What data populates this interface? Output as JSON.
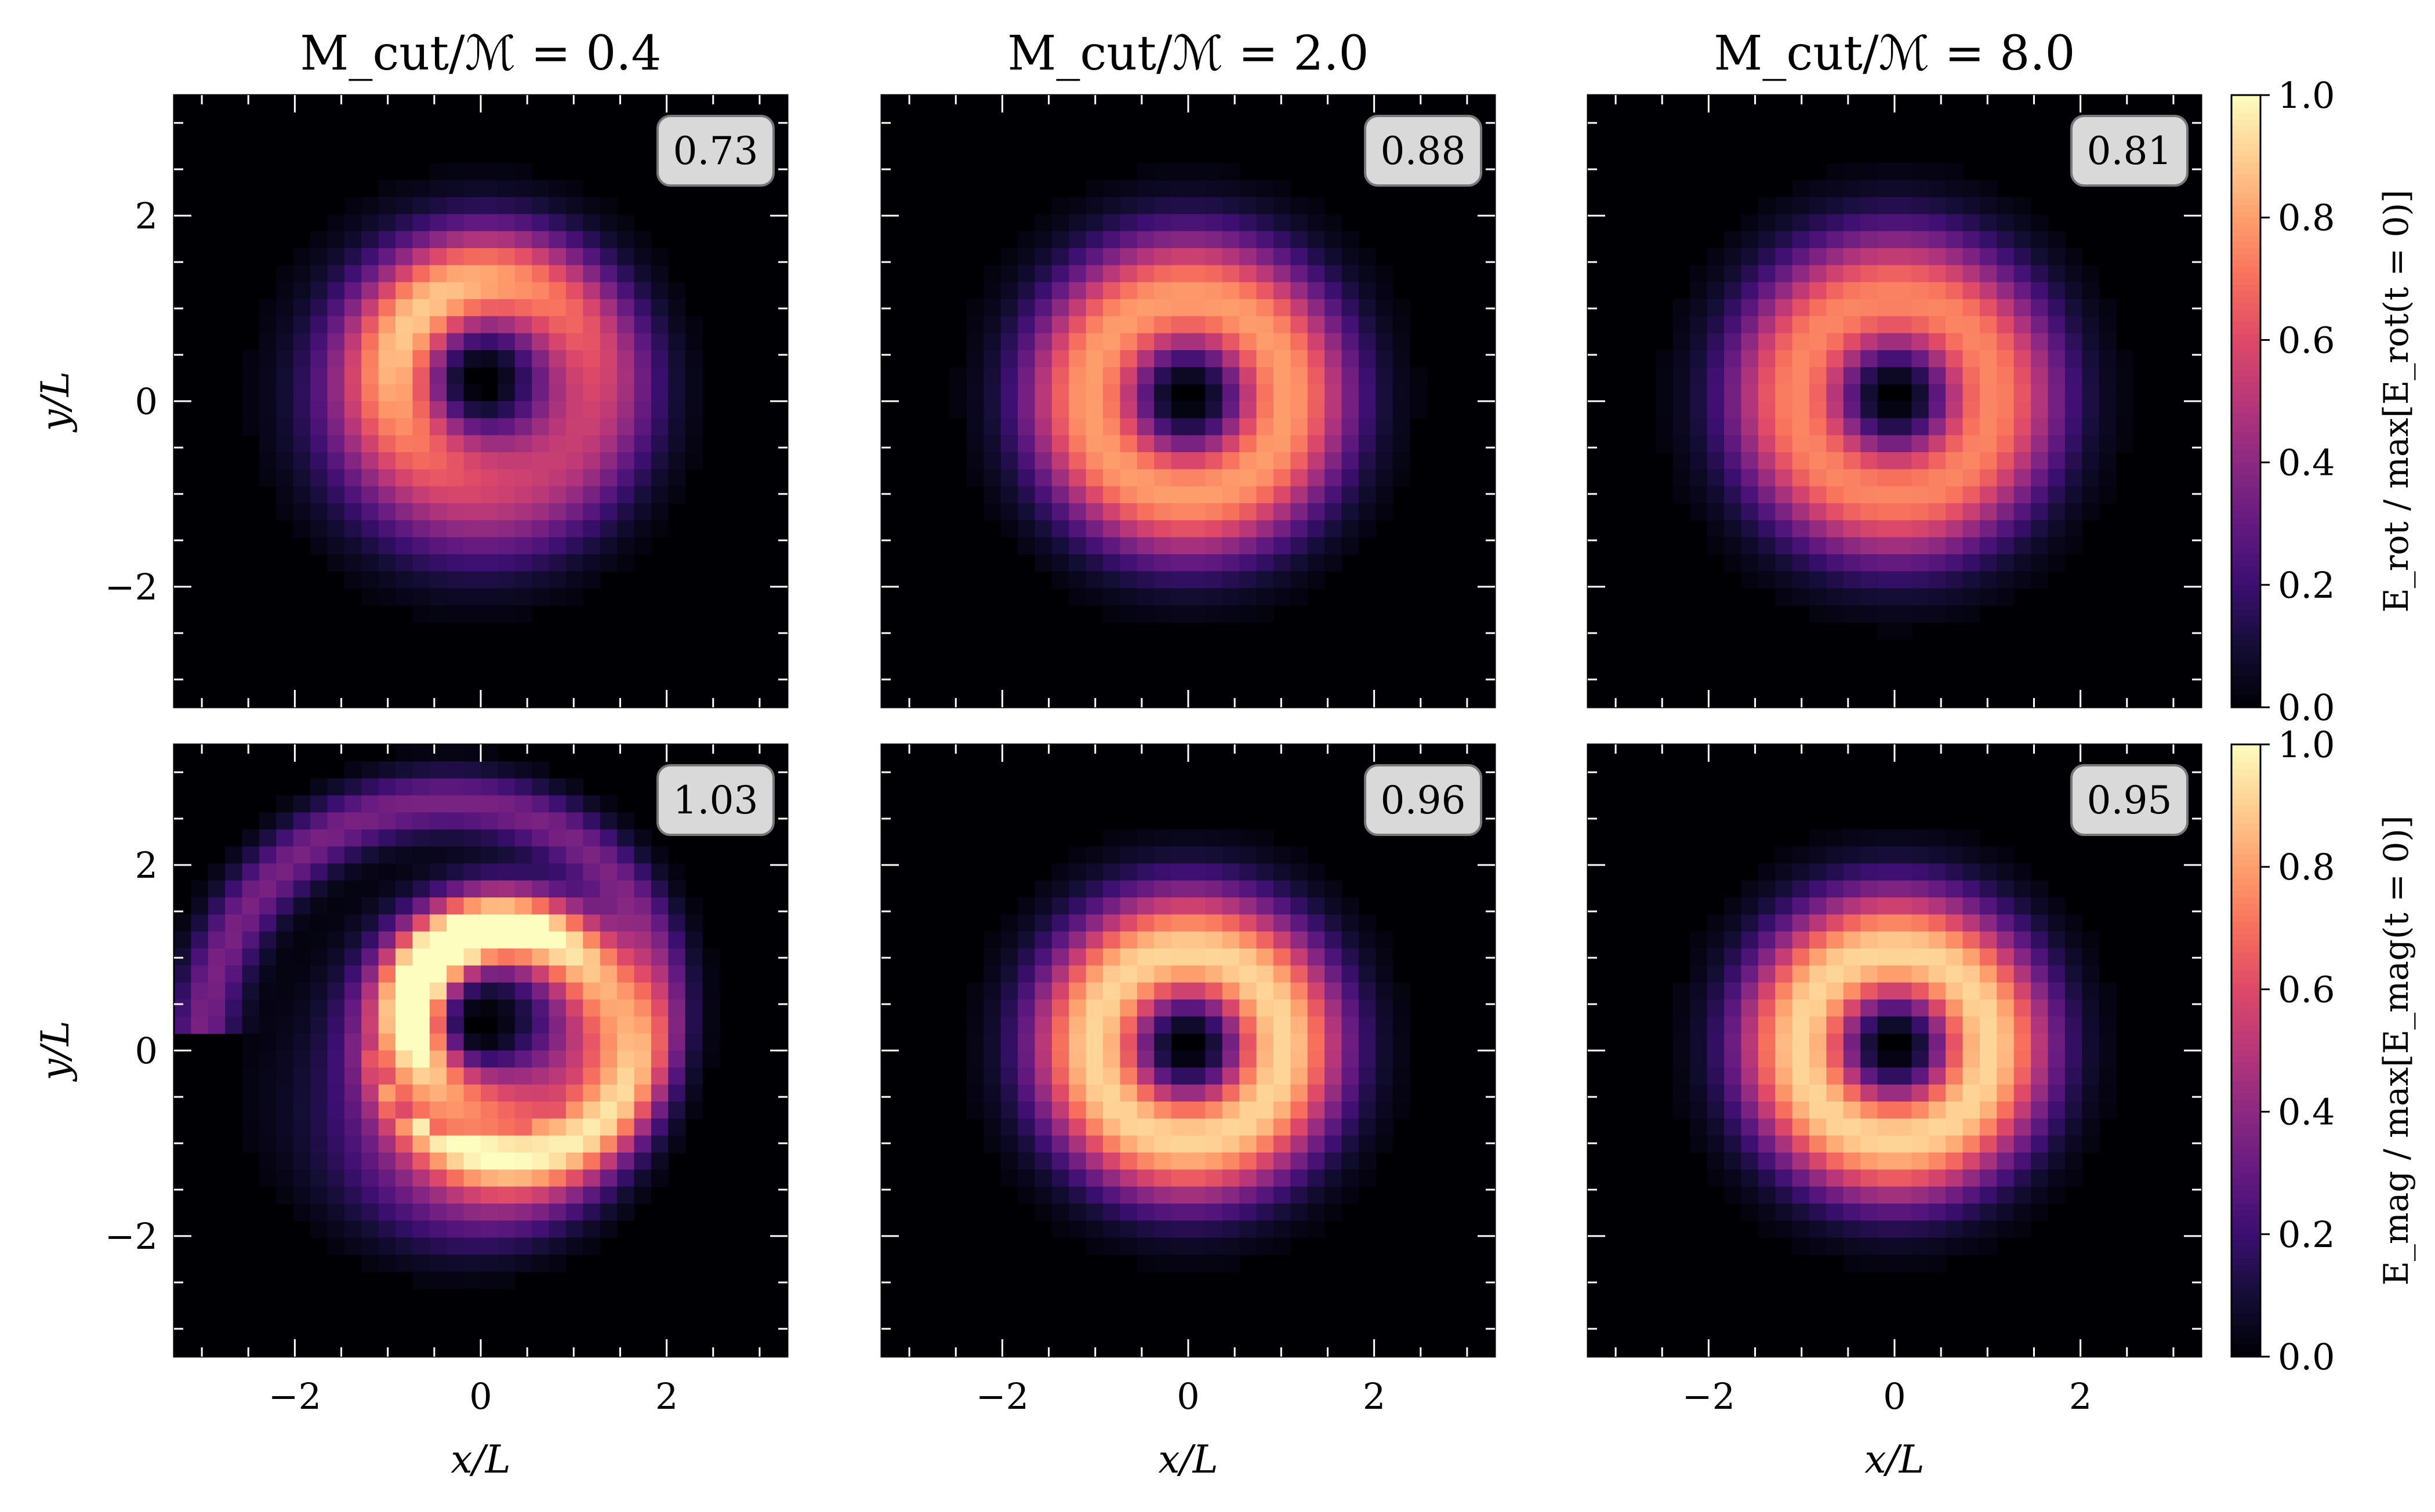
{
  "chart_data": {
    "type": "heatmap",
    "colormap": "magma",
    "grid": false,
    "column_titles": [
      "M_cut/ℳ = 0.4",
      "M_cut/ℳ = 2.0",
      "M_cut/ℳ = 8.0"
    ],
    "xlabel": "x/L",
    "ylabel": "y/L",
    "x_ticks": [
      "−2",
      "0",
      "2"
    ],
    "y_ticks": [
      "−2",
      "0",
      "2"
    ],
    "xlim": [
      -3.3,
      3.3
    ],
    "ylim": [
      -3.3,
      3.3
    ],
    "rows": [
      {
        "quantity": "E_rot",
        "colorbar_label": "E_rot / max[E_rot(t = 0)]",
        "colorbar_ticks": [
          "0.0",
          "0.2",
          "0.4",
          "0.6",
          "0.8",
          "1.0"
        ],
        "clim": [
          0.0,
          1.0
        ],
        "panels": [
          {
            "mcut_ratio": 0.4,
            "annotation": "0.73",
            "center": [
              0.0,
              0.2
            ],
            "ring_radius": 1.05,
            "ring_width": 0.75,
            "peak": 0.72,
            "asymmetry": 0.25,
            "spiral": 0.15
          },
          {
            "mcut_ratio": 2.0,
            "annotation": "0.88",
            "center": [
              0.0,
              0.05
            ],
            "ring_radius": 1.05,
            "ring_width": 0.75,
            "peak": 0.8,
            "asymmetry": 0.0,
            "spiral": 0.0
          },
          {
            "mcut_ratio": 8.0,
            "annotation": "0.81",
            "center": [
              0.0,
              0.05
            ],
            "ring_radius": 1.05,
            "ring_width": 0.78,
            "peak": 0.75,
            "asymmetry": 0.0,
            "spiral": 0.0
          }
        ]
      },
      {
        "quantity": "E_mag",
        "colorbar_label": "E_mag / max[E_mag(t = 0)]",
        "colorbar_ticks": [
          "0.0",
          "0.2",
          "0.4",
          "0.6",
          "0.8",
          "1.0"
        ],
        "clim": [
          0.0,
          1.0
        ],
        "panels": [
          {
            "mcut_ratio": 0.4,
            "annotation": "1.03",
            "center": [
              0.0,
              0.2
            ],
            "ring_radius": 1.0,
            "ring_width": 0.7,
            "peak": 1.0,
            "asymmetry": 0.35,
            "spiral": 0.45
          },
          {
            "mcut_ratio": 2.0,
            "annotation": "0.96",
            "center": [
              0.0,
              0.05
            ],
            "ring_radius": 1.0,
            "ring_width": 0.72,
            "peak": 0.92,
            "asymmetry": 0.0,
            "spiral": 0.0
          },
          {
            "mcut_ratio": 8.0,
            "annotation": "0.95",
            "center": [
              0.0,
              0.05
            ],
            "ring_radius": 1.0,
            "ring_width": 0.72,
            "peak": 0.92,
            "asymmetry": 0.0,
            "spiral": 0.0
          }
        ]
      }
    ]
  }
}
